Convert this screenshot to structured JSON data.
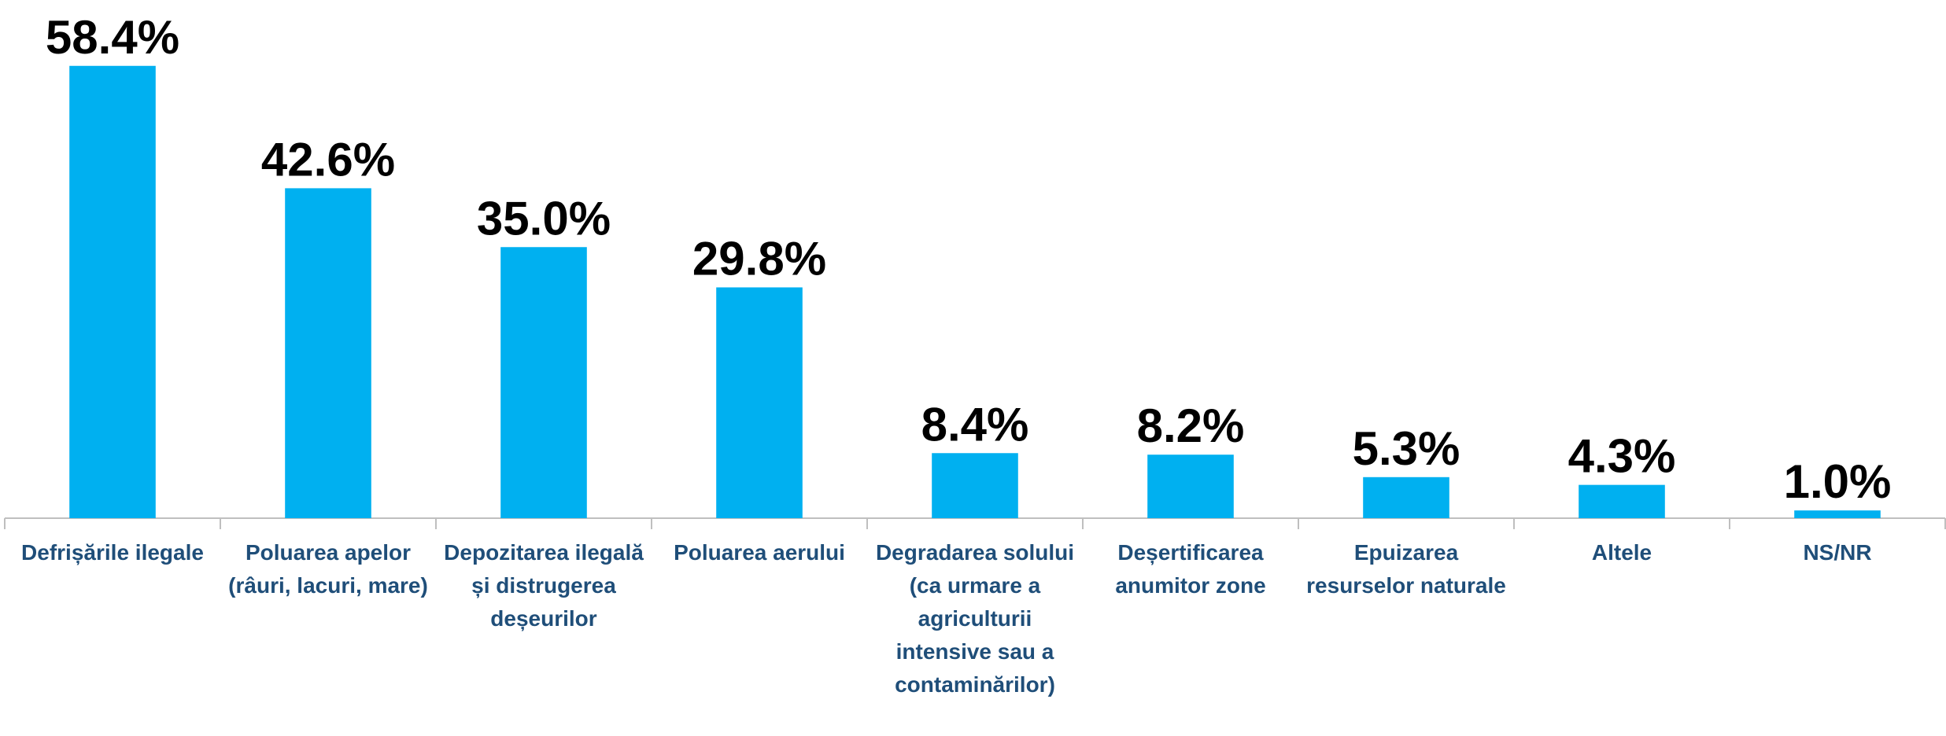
{
  "chart_data": {
    "type": "bar",
    "categories": [
      "Defrișările ilegale",
      "Poluarea apelor (râuri, lacuri, mare)",
      "Depozitarea ilegală și distrugerea deșeurilor",
      "Poluarea aerului",
      "Degradarea solului (ca urmare a agriculturii intensive sau a contaminărilor)",
      "Deșertificarea anumitor zone",
      "Epuizarea resurselor naturale",
      "Altele",
      "NS/NR"
    ],
    "values": [
      58.4,
      42.6,
      35.0,
      29.8,
      8.4,
      8.2,
      5.3,
      4.3,
      1.0
    ],
    "value_labels": [
      "58.4%",
      "42.6%",
      "35.0%",
      "29.8%",
      "8.4%",
      "8.2%",
      "5.3%",
      "4.3%",
      "1.0%"
    ],
    "color": "#00b0f0",
    "ylim": [
      0,
      60
    ]
  }
}
